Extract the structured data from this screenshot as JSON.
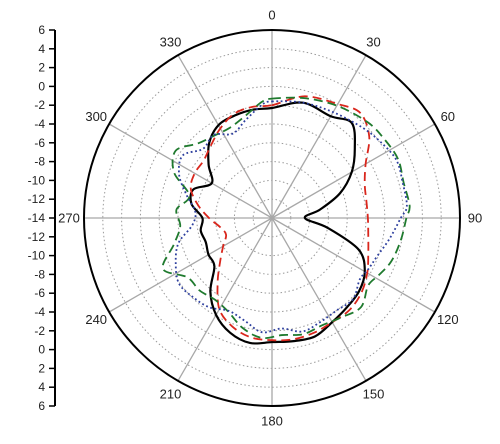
{
  "chart_data": {
    "type": "polar",
    "grid": true,
    "angular_ticks": [
      "0",
      "30",
      "60",
      "90",
      "120",
      "150",
      "180",
      "210",
      "240",
      "270",
      "300",
      "330"
    ],
    "radial_ticks": [
      "6",
      "4",
      "2",
      "0",
      "-2",
      "-4",
      "-6",
      "-8",
      "-10",
      "-12",
      "-14",
      "-12",
      "-10",
      "-8",
      "-6",
      "-4",
      "-2",
      "0",
      "2",
      "4",
      "6"
    ],
    "r_range": [
      -14,
      6
    ],
    "series": [
      {
        "color": "#000000",
        "style": "solid",
        "points": [
          [
            0,
            -2.3
          ],
          [
            15,
            -1.3
          ],
          [
            30,
            -1.5
          ],
          [
            40,
            -0.8
          ],
          [
            50,
            -2.5
          ],
          [
            60,
            -4.2
          ],
          [
            70,
            -6.3
          ],
          [
            80,
            -8.8
          ],
          [
            90,
            -10.5
          ],
          [
            100,
            -8.0
          ],
          [
            110,
            -4.2
          ],
          [
            120,
            -2.6
          ],
          [
            130,
            -1.9
          ],
          [
            140,
            -1.6
          ],
          [
            150,
            -1.2
          ],
          [
            160,
            -0.6
          ],
          [
            170,
            -0.7
          ],
          [
            180,
            -0.8
          ],
          [
            190,
            -0.5
          ],
          [
            200,
            -1.0
          ],
          [
            210,
            -2.1
          ],
          [
            220,
            -3.8
          ],
          [
            230,
            -6.0
          ],
          [
            240,
            -6.2
          ],
          [
            250,
            -6.5
          ],
          [
            260,
            -6.3
          ],
          [
            270,
            -6.6
          ],
          [
            280,
            -5.3
          ],
          [
            290,
            -5.1
          ],
          [
            300,
            -6.6
          ],
          [
            310,
            -5.2
          ],
          [
            320,
            -3.6
          ],
          [
            330,
            -2.6
          ],
          [
            340,
            -2.4
          ],
          [
            350,
            -2.3
          ],
          [
            360,
            -2.3
          ]
        ]
      },
      {
        "color": "#d9261c",
        "style": "dashed",
        "points": [
          [
            0,
            -2.0
          ],
          [
            15,
            -0.6
          ],
          [
            30,
            0.0
          ],
          [
            40,
            0.6
          ],
          [
            50,
            -0.5
          ],
          [
            60,
            -2.5
          ],
          [
            70,
            -3.5
          ],
          [
            80,
            -3.8
          ],
          [
            90,
            -3.8
          ],
          [
            100,
            -3.6
          ],
          [
            110,
            -3.1
          ],
          [
            120,
            -2.3
          ],
          [
            130,
            -1.6
          ],
          [
            140,
            -1.2
          ],
          [
            150,
            -1.2
          ],
          [
            160,
            -1.0
          ],
          [
            170,
            -0.9
          ],
          [
            180,
            -1.0
          ],
          [
            190,
            -1.1
          ],
          [
            200,
            -1.7
          ],
          [
            210,
            -2.8
          ],
          [
            220,
            -5.0
          ],
          [
            230,
            -6.8
          ],
          [
            240,
            -8.0
          ],
          [
            250,
            -8.8
          ],
          [
            260,
            -8.4
          ],
          [
            270,
            -7.3
          ],
          [
            280,
            -6.0
          ],
          [
            290,
            -4.8
          ],
          [
            300,
            -4.5
          ],
          [
            310,
            -4.5
          ],
          [
            320,
            -3.9
          ],
          [
            330,
            -3.0
          ],
          [
            340,
            -2.2
          ],
          [
            350,
            -2.0
          ],
          [
            360,
            -2.0
          ]
        ]
      },
      {
        "color": "#1f7a2e",
        "style": "dashed",
        "points": [
          [
            0,
            -1.3
          ],
          [
            15,
            -0.8
          ],
          [
            30,
            -0.2
          ],
          [
            45,
            0.4
          ],
          [
            55,
            0.6
          ],
          [
            65,
            0.8
          ],
          [
            75,
            0.5
          ],
          [
            85,
            0.7
          ],
          [
            90,
            0.3
          ],
          [
            100,
            -0.1
          ],
          [
            110,
            -0.5
          ],
          [
            118,
            -1.1
          ],
          [
            125,
            -1.5
          ],
          [
            135,
            -0.6
          ],
          [
            145,
            -1.1
          ],
          [
            155,
            -1.4
          ],
          [
            165,
            -1.2
          ],
          [
            175,
            -1.5
          ],
          [
            185,
            -1.2
          ],
          [
            195,
            -1.9
          ],
          [
            205,
            -3.0
          ],
          [
            215,
            -3.4
          ],
          [
            225,
            -3.1
          ],
          [
            235,
            -3.0
          ],
          [
            245,
            -1.2
          ],
          [
            255,
            -3.2
          ],
          [
            265,
            -4.2
          ],
          [
            275,
            -3.8
          ],
          [
            285,
            -4.9
          ],
          [
            295,
            -2.5
          ],
          [
            305,
            -1.5
          ],
          [
            315,
            -2.8
          ],
          [
            325,
            -3.3
          ],
          [
            335,
            -3.4
          ],
          [
            345,
            -2.8
          ],
          [
            355,
            -1.6
          ],
          [
            360,
            -1.3
          ]
        ]
      },
      {
        "color": "#2d3f9e",
        "style": "dotted",
        "points": [
          [
            0,
            -1.6
          ],
          [
            15,
            -1.3
          ],
          [
            30,
            -1.0
          ],
          [
            45,
            -0.4
          ],
          [
            55,
            0.1
          ],
          [
            65,
            0.6
          ],
          [
            75,
            0.4
          ],
          [
            85,
            0.4
          ],
          [
            90,
            -0.3
          ],
          [
            100,
            -1.3
          ],
          [
            110,
            -2.1
          ],
          [
            118,
            -2.4
          ],
          [
            125,
            -2.6
          ],
          [
            135,
            -1.8
          ],
          [
            145,
            -2.0
          ],
          [
            155,
            -1.8
          ],
          [
            165,
            -1.5
          ],
          [
            175,
            -2.2
          ],
          [
            185,
            -1.8
          ],
          [
            195,
            -2.7
          ],
          [
            205,
            -3.1
          ],
          [
            215,
            -2.4
          ],
          [
            225,
            -2.1
          ],
          [
            235,
            -1.9
          ],
          [
            245,
            -2.7
          ],
          [
            255,
            -3.7
          ],
          [
            265,
            -5.5
          ],
          [
            275,
            -5.8
          ],
          [
            285,
            -4.6
          ],
          [
            295,
            -3.1
          ],
          [
            305,
            -2.4
          ],
          [
            315,
            -3.6
          ],
          [
            325,
            -3.2
          ],
          [
            335,
            -4.1
          ],
          [
            345,
            -3.2
          ],
          [
            355,
            -1.9
          ],
          [
            360,
            -1.6
          ]
        ]
      }
    ]
  }
}
